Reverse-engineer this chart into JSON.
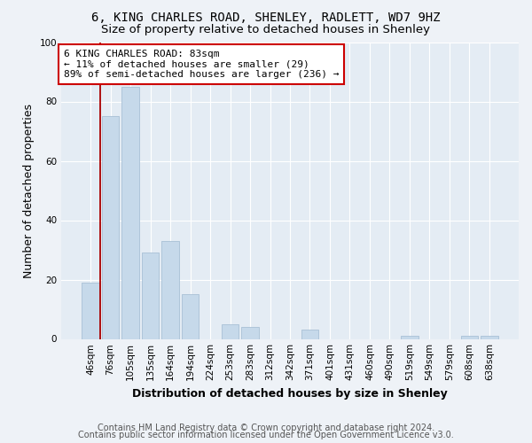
{
  "title1": "6, KING CHARLES ROAD, SHENLEY, RADLETT, WD7 9HZ",
  "title2": "Size of property relative to detached houses in Shenley",
  "xlabel": "Distribution of detached houses by size in Shenley",
  "ylabel": "Number of detached properties",
  "footer1": "Contains HM Land Registry data © Crown copyright and database right 2024.",
  "footer2": "Contains public sector information licensed under the Open Government Licence v3.0.",
  "annotation_title": "6 KING CHARLES ROAD: 83sqm",
  "annotation_line1": "← 11% of detached houses are smaller (29)",
  "annotation_line2": "89% of semi-detached houses are larger (236) →",
  "bar_labels": [
    "46sqm",
    "76sqm",
    "105sqm",
    "135sqm",
    "164sqm",
    "194sqm",
    "224sqm",
    "253sqm",
    "283sqm",
    "312sqm",
    "342sqm",
    "371sqm",
    "401sqm",
    "431sqm",
    "460sqm",
    "490sqm",
    "519sqm",
    "549sqm",
    "579sqm",
    "608sqm",
    "638sqm"
  ],
  "bar_values": [
    19,
    75,
    85,
    29,
    33,
    15,
    0,
    5,
    4,
    0,
    0,
    3,
    0,
    0,
    0,
    0,
    1,
    0,
    0,
    1,
    1
  ],
  "bar_color": "#c6d9ea",
  "bar_edge_color": "#a8c0d6",
  "vline_x_index": 0.5,
  "vline_color": "#aa0000",
  "background_color": "#eef2f7",
  "plot_background": "#e4ecf4",
  "ylim": [
    0,
    100
  ],
  "yticks": [
    0,
    20,
    40,
    60,
    80,
    100
  ],
  "annotation_box_color": "#ffffff",
  "annotation_border_color": "#cc0000",
  "title_fontsize": 10,
  "subtitle_fontsize": 9.5,
  "axis_label_fontsize": 9,
  "tick_fontsize": 7.5,
  "annotation_fontsize": 8,
  "footer_fontsize": 7
}
